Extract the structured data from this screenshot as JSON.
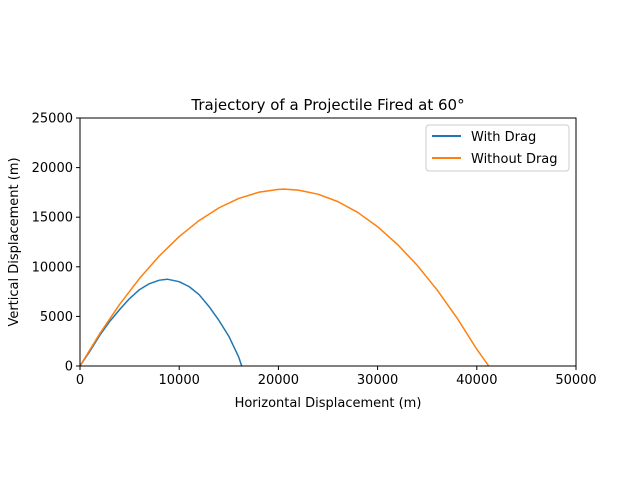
{
  "chart_data": {
    "type": "line",
    "title": "Trajectory of a Projectile Fired at 60°",
    "xlabel": "Horizontal Displacement (m)",
    "ylabel": "Vertical Displacement (m)",
    "xlim": [
      0,
      50000
    ],
    "ylim": [
      0,
      25000
    ],
    "xticks": [
      0,
      10000,
      20000,
      30000,
      40000,
      50000
    ],
    "yticks": [
      0,
      5000,
      10000,
      15000,
      20000,
      25000
    ],
    "xtick_labels": [
      "0",
      "10000",
      "20000",
      "30000",
      "40000",
      "50000"
    ],
    "ytick_labels": [
      "0",
      "5000",
      "10000",
      "15000",
      "20000",
      "25000"
    ],
    "grid": false,
    "legend": "top-right",
    "series": [
      {
        "name": "With Drag",
        "color": "#1f77b4",
        "x": [
          0,
          1000,
          2000,
          3000,
          4000,
          5000,
          6000,
          7000,
          8000,
          8800,
          10000,
          11000,
          12000,
          13000,
          14000,
          15000,
          16000,
          16300
        ],
        "y": [
          0,
          1500,
          3100,
          4500,
          5700,
          6800,
          7700,
          8300,
          8650,
          8750,
          8500,
          8000,
          7200,
          6000,
          4600,
          3000,
          900,
          0
        ]
      },
      {
        "name": "Without Drag",
        "color": "#ff7f0e",
        "x": [
          0,
          2000,
          4000,
          6000,
          8000,
          10000,
          12000,
          14000,
          16000,
          18000,
          20000,
          20600,
          22000,
          24000,
          26000,
          28000,
          30000,
          32000,
          34000,
          36000,
          38000,
          40000,
          41200
        ],
        "y": [
          0,
          3270,
          6220,
          8830,
          11100,
          13050,
          14660,
          15940,
          16890,
          17510,
          17800,
          17830,
          17730,
          17320,
          16570,
          15480,
          14040,
          12260,
          10140,
          7670,
          4850,
          1690,
          0
        ]
      }
    ]
  }
}
